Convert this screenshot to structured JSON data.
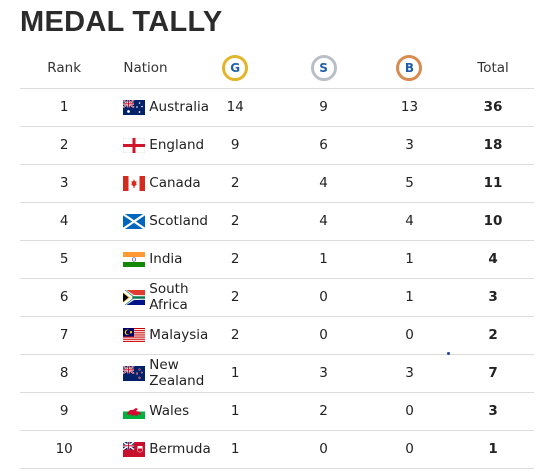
{
  "title": "MEDAL TALLY",
  "headers": {
    "rank": "Rank",
    "nation": "Nation",
    "gold": "G",
    "silver": "S",
    "bronze": "B",
    "total": "Total"
  },
  "colors": {
    "gold_ring": "#e2b52b",
    "silver_ring": "#b9bfc6",
    "bronze_ring": "#d98a4e",
    "medal_letter": "#1f5fa8",
    "row_divider": "#dcdcdc"
  },
  "rows": [
    {
      "rank": "1",
      "flag": "australia-flag-icon",
      "nation": "Australia",
      "gold": "14",
      "silver": "9",
      "bronze": "13",
      "total": "36"
    },
    {
      "rank": "2",
      "flag": "england-flag-icon",
      "nation": "England",
      "gold": "9",
      "silver": "6",
      "bronze": "3",
      "total": "18"
    },
    {
      "rank": "3",
      "flag": "canada-flag-icon",
      "nation": "Canada",
      "gold": "2",
      "silver": "4",
      "bronze": "5",
      "total": "11"
    },
    {
      "rank": "4",
      "flag": "scotland-flag-icon",
      "nation": "Scotland",
      "gold": "2",
      "silver": "4",
      "bronze": "4",
      "total": "10"
    },
    {
      "rank": "5",
      "flag": "india-flag-icon",
      "nation": "India",
      "gold": "2",
      "silver": "1",
      "bronze": "1",
      "total": "4"
    },
    {
      "rank": "6",
      "flag": "south-africa-flag-icon",
      "nation": "South Africa",
      "gold": "2",
      "silver": "0",
      "bronze": "1",
      "total": "3"
    },
    {
      "rank": "7",
      "flag": "malaysia-flag-icon",
      "nation": "Malaysia",
      "gold": "2",
      "silver": "0",
      "bronze": "0",
      "total": "2"
    },
    {
      "rank": "8",
      "flag": "new-zealand-flag-icon",
      "nation": "New Zealand",
      "gold": "1",
      "silver": "3",
      "bronze": "3",
      "total": "7"
    },
    {
      "rank": "9",
      "flag": "wales-flag-icon",
      "nation": "Wales",
      "gold": "1",
      "silver": "2",
      "bronze": "0",
      "total": "3"
    },
    {
      "rank": "10",
      "flag": "bermuda-flag-icon",
      "nation": "Bermuda",
      "gold": "1",
      "silver": "0",
      "bronze": "0",
      "total": "1"
    }
  ]
}
